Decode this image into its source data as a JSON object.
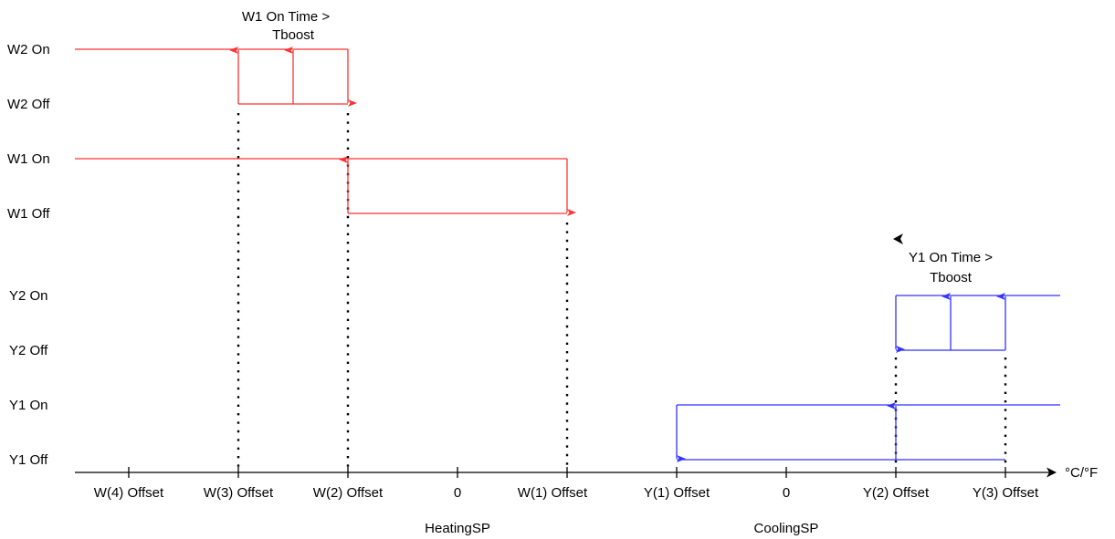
{
  "level_labels": {
    "w2_on": "W2 On",
    "w2_off": "W2 Off",
    "w1_on": "W1 On",
    "w1_off": "W1 Off",
    "y2_on": "Y2 On",
    "y2_off": "Y2 Off",
    "y1_on": "Y1 On",
    "y1_off": "Y1 Off"
  },
  "axis": {
    "unit_label": "°C/°F",
    "ticks": [
      "W(4) Offset",
      "W(3) Offset",
      "W(2) Offset",
      "0",
      "W(1) Offset",
      "Y(1) Offset",
      "0",
      "Y(2) Offset",
      "Y(3) Offset"
    ],
    "setpoints": {
      "heating": "HeatingSP",
      "cooling": "CoolingSP"
    }
  },
  "annotations": {
    "w1_boost": [
      "W1 On Time >",
      "Tboost"
    ],
    "y1_boost": [
      "Y1 On Time >",
      "Tboost"
    ]
  },
  "colors": {
    "heating": "#ff3333",
    "cooling": "#3333ff",
    "axis": "#000000"
  }
}
